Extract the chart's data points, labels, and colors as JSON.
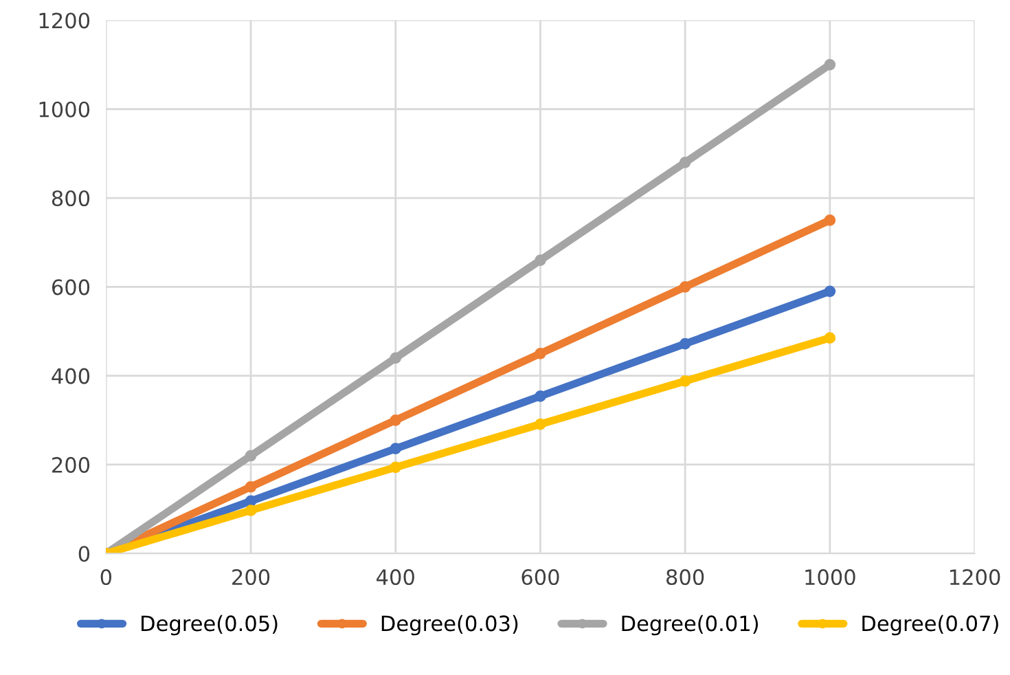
{
  "chart_data": {
    "type": "line",
    "x": [
      0,
      200,
      400,
      600,
      800,
      1000
    ],
    "xlim": [
      0,
      1200
    ],
    "xticks": [
      0,
      200,
      400,
      600,
      800,
      1000,
      1200
    ],
    "ylim": [
      0,
      1200
    ],
    "yticks": [
      0,
      200,
      400,
      600,
      800,
      1000,
      1200
    ],
    "grid": true,
    "legend": "bottom",
    "marker": "circle",
    "series": [
      {
        "name": "Degree(0.05)",
        "color": "#4472c4",
        "values": [
          0,
          118,
          236,
          354,
          472,
          590
        ]
      },
      {
        "name": "Degree(0.03)",
        "color": "#ed7d31",
        "values": [
          0,
          150,
          300,
          450,
          600,
          750
        ]
      },
      {
        "name": "Degree(0.01)",
        "color": "#a5a5a5",
        "values": [
          0,
          220,
          440,
          660,
          880,
          1100
        ]
      },
      {
        "name": "Degree(0.07)",
        "color": "#ffc000",
        "values": [
          0,
          97,
          194,
          291,
          388,
          485
        ]
      }
    ]
  }
}
